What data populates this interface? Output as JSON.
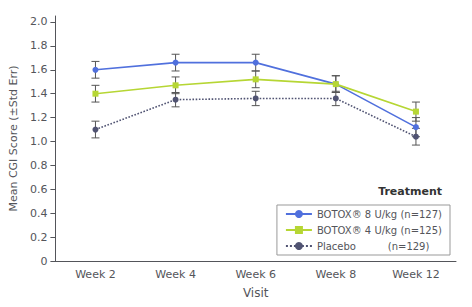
{
  "chart_data": {
    "type": "line",
    "categories": [
      "Week 2",
      "Week 4",
      "Week 6",
      "Week 8",
      "Week 12"
    ],
    "series": [
      {
        "name": "BOTOX® 8 U/kg (n=127)",
        "values": [
          1.6,
          1.66,
          1.66,
          1.48,
          1.12
        ],
        "errors": [
          0.07,
          0.07,
          0.07,
          0.07,
          0.08
        ],
        "marker": "circle",
        "line_style": "solid"
      },
      {
        "name": "BOTOX® 4 U/kg (n=125)",
        "values": [
          1.4,
          1.47,
          1.52,
          1.48,
          1.25
        ],
        "errors": [
          0.07,
          0.07,
          0.07,
          0.07,
          0.08
        ],
        "marker": "square",
        "line_style": "solid"
      },
      {
        "name": "Placebo          (n=129)",
        "values": [
          1.1,
          1.35,
          1.36,
          1.36,
          1.04
        ],
        "errors": [
          0.07,
          0.06,
          0.06,
          0.06,
          0.07
        ],
        "marker": "circle",
        "line_style": "dotted"
      }
    ],
    "ylim": [
      0,
      2.05
    ],
    "yticks": [
      0,
      0.2,
      0.4,
      0.6,
      0.8,
      {
        "value": 1.0,
        "label": "1.0"
      },
      1.2,
      1.4,
      1.6,
      1.8,
      {
        "value": 2.0,
        "label": "2.0"
      }
    ],
    "ylabel": "Mean CGI Score (±Std Err)",
    "xlabel": "Visit",
    "legend_title": "Treatment",
    "legend": "lower right",
    "grid": false
  }
}
